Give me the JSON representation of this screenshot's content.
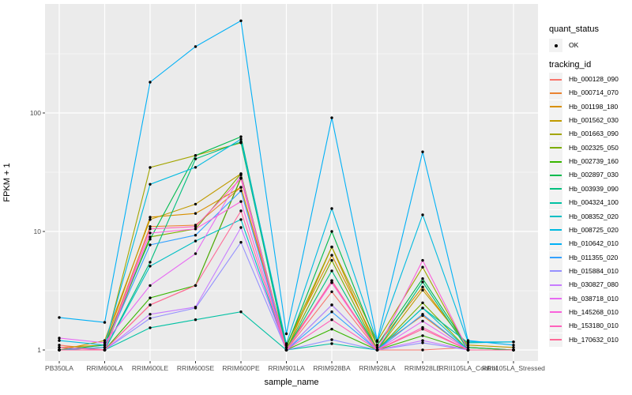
{
  "figure": {
    "x_axis_title": "sample_name",
    "y_axis_title": "FPKM + 1",
    "y_tick_labels": [
      "1",
      "10",
      "100"
    ]
  },
  "legend": {
    "quant_status_title": "quant_status",
    "quant_status_items": [
      {
        "label": "OK",
        "symbol": "black-point"
      }
    ],
    "tracking_id_title": "tracking_id"
  },
  "colors": {
    "panel_background": "#EBEBEB",
    "gridline": "#FFFFFF",
    "axis_text": "#4D4D4D",
    "tick_mark": "#333333",
    "point": "#000000",
    "legend_key_background": "#F2F2F2"
  },
  "chart_data": {
    "type": "line",
    "x_type": "categorical",
    "y_scale": "log10",
    "title": "",
    "xlabel": "sample_name",
    "ylabel": "FPKM + 1",
    "ylim": [
      0.93,
      820
    ],
    "y_major_gridlines": [
      1,
      10,
      100
    ],
    "y_minor_gridlines": [
      3.162,
      31.62,
      316.2
    ],
    "legend_position": "right",
    "categories": [
      "PB350LA",
      "RRIM600LA",
      "RRIM600LE",
      "RRIM600SE",
      "RRIM600PE",
      "RRIM901LA",
      "RRIM928BA",
      "RRIM928LA",
      "RRIM928LE",
      "RRII105LA_Control",
      "RRII105LA_Stressed"
    ],
    "series": [
      {
        "name": "Hb_000128_090",
        "color": "#F8766D",
        "values": [
          1.1,
          1.0,
          2.4,
          3.5,
          28.0,
          1.0,
          3.1,
          1.0,
          1.0,
          1.05,
          1.0
        ]
      },
      {
        "name": "Hb_000714_070",
        "color": "#EA8331",
        "values": [
          1.0,
          1.05,
          11.0,
          11.3,
          23.6,
          1.05,
          3.7,
          1.05,
          1.95,
          1.0,
          1.0
        ]
      },
      {
        "name": "Hb_001198_180",
        "color": "#D89000",
        "values": [
          1.05,
          1.1,
          13.2,
          14.2,
          23.6,
          1.1,
          6.3,
          1.1,
          3.4,
          1.05,
          1.0
        ]
      },
      {
        "name": "Hb_001562_030",
        "color": "#C09B00",
        "values": [
          1.0,
          1.2,
          12.6,
          17.0,
          30.7,
          1.0,
          7.4,
          1.0,
          3.2,
          1.1,
          1.05
        ]
      },
      {
        "name": "Hb_001663_090",
        "color": "#A3A500",
        "values": [
          1.0,
          1.05,
          34.7,
          43.8,
          56.0,
          1.1,
          7.4,
          1.18,
          5.0,
          1.0,
          1.0
        ]
      },
      {
        "name": "Hb_002325_050",
        "color": "#7CAE00",
        "values": [
          1.0,
          1.0,
          9.0,
          10.5,
          30.7,
          1.0,
          5.7,
          1.0,
          2.5,
          1.0,
          1.0
        ]
      },
      {
        "name": "Hb_002739_160",
        "color": "#39B600",
        "values": [
          1.0,
          1.0,
          2.75,
          3.5,
          28.4,
          1.0,
          1.5,
          1.0,
          1.32,
          1.0,
          1.0
        ]
      },
      {
        "name": "Hb_002897_030",
        "color": "#00BB4E",
        "values": [
          1.0,
          1.1,
          8.6,
          43.8,
          63.0,
          1.05,
          10.0,
          1.1,
          4.0,
          1.05,
          1.0
        ]
      },
      {
        "name": "Hb_003939_090",
        "color": "#00BF7D",
        "values": [
          1.0,
          1.0,
          5.5,
          41.0,
          57.0,
          1.0,
          4.65,
          1.0,
          3.75,
          1.0,
          1.0
        ]
      },
      {
        "name": "Hb_004324_100",
        "color": "#00C1A3",
        "values": [
          1.0,
          1.0,
          1.54,
          1.8,
          2.1,
          1.0,
          1.13,
          1.0,
          2.26,
          1.15,
          1.17
        ]
      },
      {
        "name": "Hb_008352_020",
        "color": "#00BFC4",
        "values": [
          1.0,
          1.0,
          5.1,
          8.3,
          12.6,
          1.0,
          2.4,
          1.0,
          2.26,
          1.0,
          1.0
        ]
      },
      {
        "name": "Hb_008725_020",
        "color": "#00BAE0",
        "values": [
          1.2,
          1.1,
          25.0,
          34.8,
          60.0,
          1.13,
          15.6,
          1.18,
          13.8,
          1.17,
          1.17
        ]
      },
      {
        "name": "Hb_010642_010",
        "color": "#00B0F6",
        "values": [
          1.88,
          1.71,
          182,
          363,
          600,
          1.37,
          91.0,
          1.2,
          47.0,
          1.2,
          1.1
        ]
      },
      {
        "name": "Hb_011355_020",
        "color": "#35A2FF",
        "values": [
          1.0,
          1.05,
          7.7,
          9.3,
          22.0,
          1.0,
          2.1,
          1.0,
          2.0,
          1.0,
          1.0
        ]
      },
      {
        "name": "Hb_015884_010",
        "color": "#9590FF",
        "values": [
          1.0,
          1.0,
          1.85,
          2.26,
          8.1,
          1.0,
          1.22,
          1.0,
          1.15,
          1.0,
          1.0
        ]
      },
      {
        "name": "Hb_030827_080",
        "color": "#C77CFF",
        "values": [
          1.0,
          1.0,
          2.0,
          2.3,
          10.8,
          1.0,
          2.4,
          1.0,
          1.2,
          1.0,
          1.0
        ]
      },
      {
        "name": "Hb_038718_010",
        "color": "#E76BF3",
        "values": [
          1.26,
          1.15,
          3.5,
          6.5,
          30.0,
          1.0,
          3.85,
          1.0,
          1.75,
          1.0,
          1.0
        ]
      },
      {
        "name": "Hb_145268_010",
        "color": "#FA62DB",
        "values": [
          1.0,
          1.0,
          9.7,
          10.5,
          17.9,
          1.0,
          3.7,
          1.0,
          5.7,
          1.0,
          1.0
        ]
      },
      {
        "name": "Hb_153180_010",
        "color": "#FF62BC",
        "values": [
          1.05,
          1.0,
          10.5,
          11.0,
          28.0,
          1.0,
          1.8,
          1.0,
          1.55,
          1.0,
          1.0
        ]
      },
      {
        "name": "Hb_170632_010",
        "color": "#FF6A98",
        "values": [
          1.0,
          1.0,
          2.4,
          3.5,
          14.9,
          1.0,
          3.85,
          1.0,
          1.5,
          1.0,
          1.0
        ]
      }
    ]
  }
}
